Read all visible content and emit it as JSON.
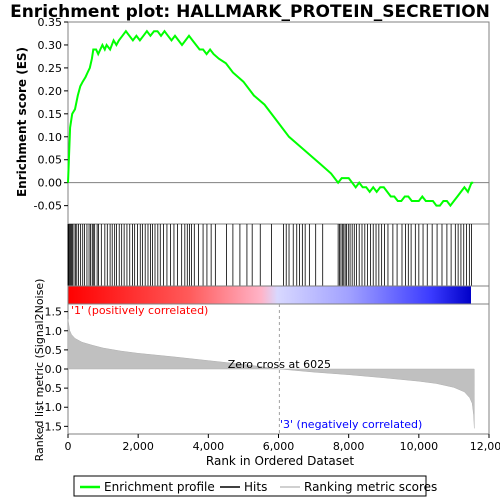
{
  "chart_data": {
    "type": "line",
    "title": "Enrichment plot: HALLMARK_PROTEIN_SECRETION",
    "top_panel": {
      "ylabel": "Enrichment score (ES)",
      "ylim": [
        -0.09,
        0.35
      ],
      "yticks": [
        "-0.05",
        "0.00",
        "0.05",
        "0.10",
        "0.15",
        "0.20",
        "0.25",
        "0.30",
        "0.35"
      ],
      "ytick_values": [
        -0.05,
        0.0,
        0.05,
        0.1,
        0.15,
        0.2,
        0.25,
        0.3,
        0.35
      ],
      "series": [
        {
          "name": "Enrichment profile",
          "color": "#00ff00",
          "x": [
            0,
            60,
            120,
            200,
            280,
            350,
            420,
            500,
            560,
            620,
            680,
            720,
            800,
            860,
            920,
            980,
            1050,
            1100,
            1200,
            1300,
            1380,
            1450,
            1550,
            1650,
            1750,
            1850,
            1950,
            2050,
            2150,
            2250,
            2350,
            2450,
            2550,
            2650,
            2750,
            2850,
            2950,
            3050,
            3150,
            3250,
            3350,
            3450,
            3550,
            3650,
            3750,
            3850,
            3950,
            4050,
            4150,
            4300,
            4500,
            4700,
            5000,
            5300,
            5600,
            5900,
            6100,
            6300,
            6600,
            6900,
            7200,
            7500,
            7700,
            7800,
            7900,
            8000,
            8100,
            8200,
            8300,
            8400,
            8500,
            8600,
            8700,
            8800,
            8900,
            9000,
            9100,
            9200,
            9300,
            9400,
            9500,
            9600,
            9700,
            9800,
            9900,
            10000,
            10100,
            10200,
            10300,
            10400,
            10500,
            10600,
            10700,
            10800,
            10900,
            11000,
            11100,
            11200,
            11300,
            11400,
            11500,
            11550
          ],
          "y": [
            0.0,
            0.12,
            0.15,
            0.16,
            0.19,
            0.21,
            0.22,
            0.23,
            0.24,
            0.25,
            0.27,
            0.29,
            0.29,
            0.28,
            0.29,
            0.3,
            0.29,
            0.3,
            0.29,
            0.31,
            0.3,
            0.31,
            0.32,
            0.33,
            0.32,
            0.31,
            0.32,
            0.31,
            0.32,
            0.33,
            0.32,
            0.33,
            0.33,
            0.32,
            0.33,
            0.32,
            0.31,
            0.32,
            0.31,
            0.3,
            0.31,
            0.32,
            0.31,
            0.3,
            0.29,
            0.29,
            0.28,
            0.29,
            0.28,
            0.27,
            0.26,
            0.24,
            0.22,
            0.19,
            0.17,
            0.14,
            0.12,
            0.1,
            0.08,
            0.06,
            0.04,
            0.02,
            0.0,
            0.01,
            0.01,
            0.01,
            0.0,
            -0.01,
            0.0,
            -0.01,
            -0.01,
            -0.02,
            -0.01,
            -0.02,
            -0.01,
            -0.01,
            -0.02,
            -0.03,
            -0.03,
            -0.04,
            -0.04,
            -0.03,
            -0.03,
            -0.04,
            -0.04,
            -0.04,
            -0.03,
            -0.04,
            -0.04,
            -0.04,
            -0.05,
            -0.05,
            -0.04,
            -0.04,
            -0.05,
            -0.04,
            -0.03,
            -0.02,
            -0.01,
            -0.02,
            0.0,
            0.0
          ]
        }
      ]
    },
    "hits": [
      0,
      20,
      40,
      70,
      100,
      130,
      170,
      210,
      250,
      300,
      360,
      420,
      470,
      540,
      600,
      640,
      690,
      720,
      760,
      830,
      870,
      950,
      1050,
      1120,
      1200,
      1260,
      1330,
      1380,
      1460,
      1530,
      1600,
      1680,
      1760,
      1840,
      1900,
      1980,
      2060,
      2120,
      2200,
      2280,
      2350,
      2410,
      2480,
      2560,
      2630,
      2720,
      2820,
      2920,
      3020,
      3120,
      3240,
      3330,
      3400,
      3460,
      3520,
      3600,
      3720,
      3850,
      3960,
      4080,
      4200,
      4520,
      4700,
      4900,
      5100,
      5250,
      5480,
      5800,
      6140,
      6220,
      6300,
      6420,
      6520,
      6600,
      6680,
      6760,
      6880,
      7060,
      7260,
      7700,
      7740,
      7780,
      7820,
      7860,
      7900,
      7940,
      7990,
      8040,
      8100,
      8160,
      8220,
      8300,
      8380,
      8460,
      8540,
      8620,
      8700,
      8780,
      8860,
      8940,
      9020,
      9120,
      9260,
      9380,
      9520,
      9620,
      9700,
      9780,
      9900,
      10000,
      10120,
      10240,
      10380,
      10520,
      10660,
      10800,
      10920,
      11040,
      11120,
      11200,
      11280,
      11360,
      11440,
      11500
    ],
    "bottom_panel": {
      "ylabel": "Ranked list metric (Signal2Noise)",
      "ylim": [
        -1.7,
        1.7
      ],
      "yticks": [
        "-1.5",
        "-1.0",
        "-0.5",
        "0.0",
        "0.5",
        "1.0",
        "1.5"
      ],
      "ytick_values": [
        -1.5,
        -1.0,
        -0.5,
        0.0,
        0.5,
        1.0,
        1.5
      ],
      "metric_x": [
        0,
        50,
        100,
        200,
        400,
        700,
        1000,
        1500,
        2000,
        3000,
        4000,
        5000,
        6025,
        7000,
        8000,
        9000,
        10000,
        10500,
        11000,
        11300,
        11450,
        11520,
        11560,
        11580
      ],
      "metric_y": [
        1.3,
        1.0,
        0.9,
        0.8,
        0.7,
        0.62,
        0.55,
        0.47,
        0.41,
        0.32,
        0.22,
        0.12,
        0.0,
        -0.08,
        -0.15,
        -0.23,
        -0.32,
        -0.38,
        -0.48,
        -0.6,
        -0.75,
        -0.9,
        -1.2,
        -1.55
      ],
      "zero_cross_label": "Zero cross at 6025",
      "zero_cross_x": 6025,
      "pos_label": "'1' (positively correlated)",
      "neg_label": "'3' (negatively correlated)"
    },
    "xlabel": "Rank in Ordered Dataset",
    "xlim": [
      0,
      12000
    ],
    "xticks": [
      "0",
      "2,000",
      "4,000",
      "6,000",
      "8,000",
      "10,000",
      "12,000"
    ],
    "xtick_values": [
      0,
      2000,
      4000,
      6000,
      8000,
      10000,
      12000
    ],
    "n_genes": 11600,
    "legend": {
      "placement": "bottom",
      "items": [
        {
          "label": "Enrichment profile",
          "color": "#00ff00"
        },
        {
          "label": "Hits",
          "color": "#000000"
        },
        {
          "label": "Ranking metric scores",
          "color": "#c0c0c0"
        }
      ]
    }
  }
}
